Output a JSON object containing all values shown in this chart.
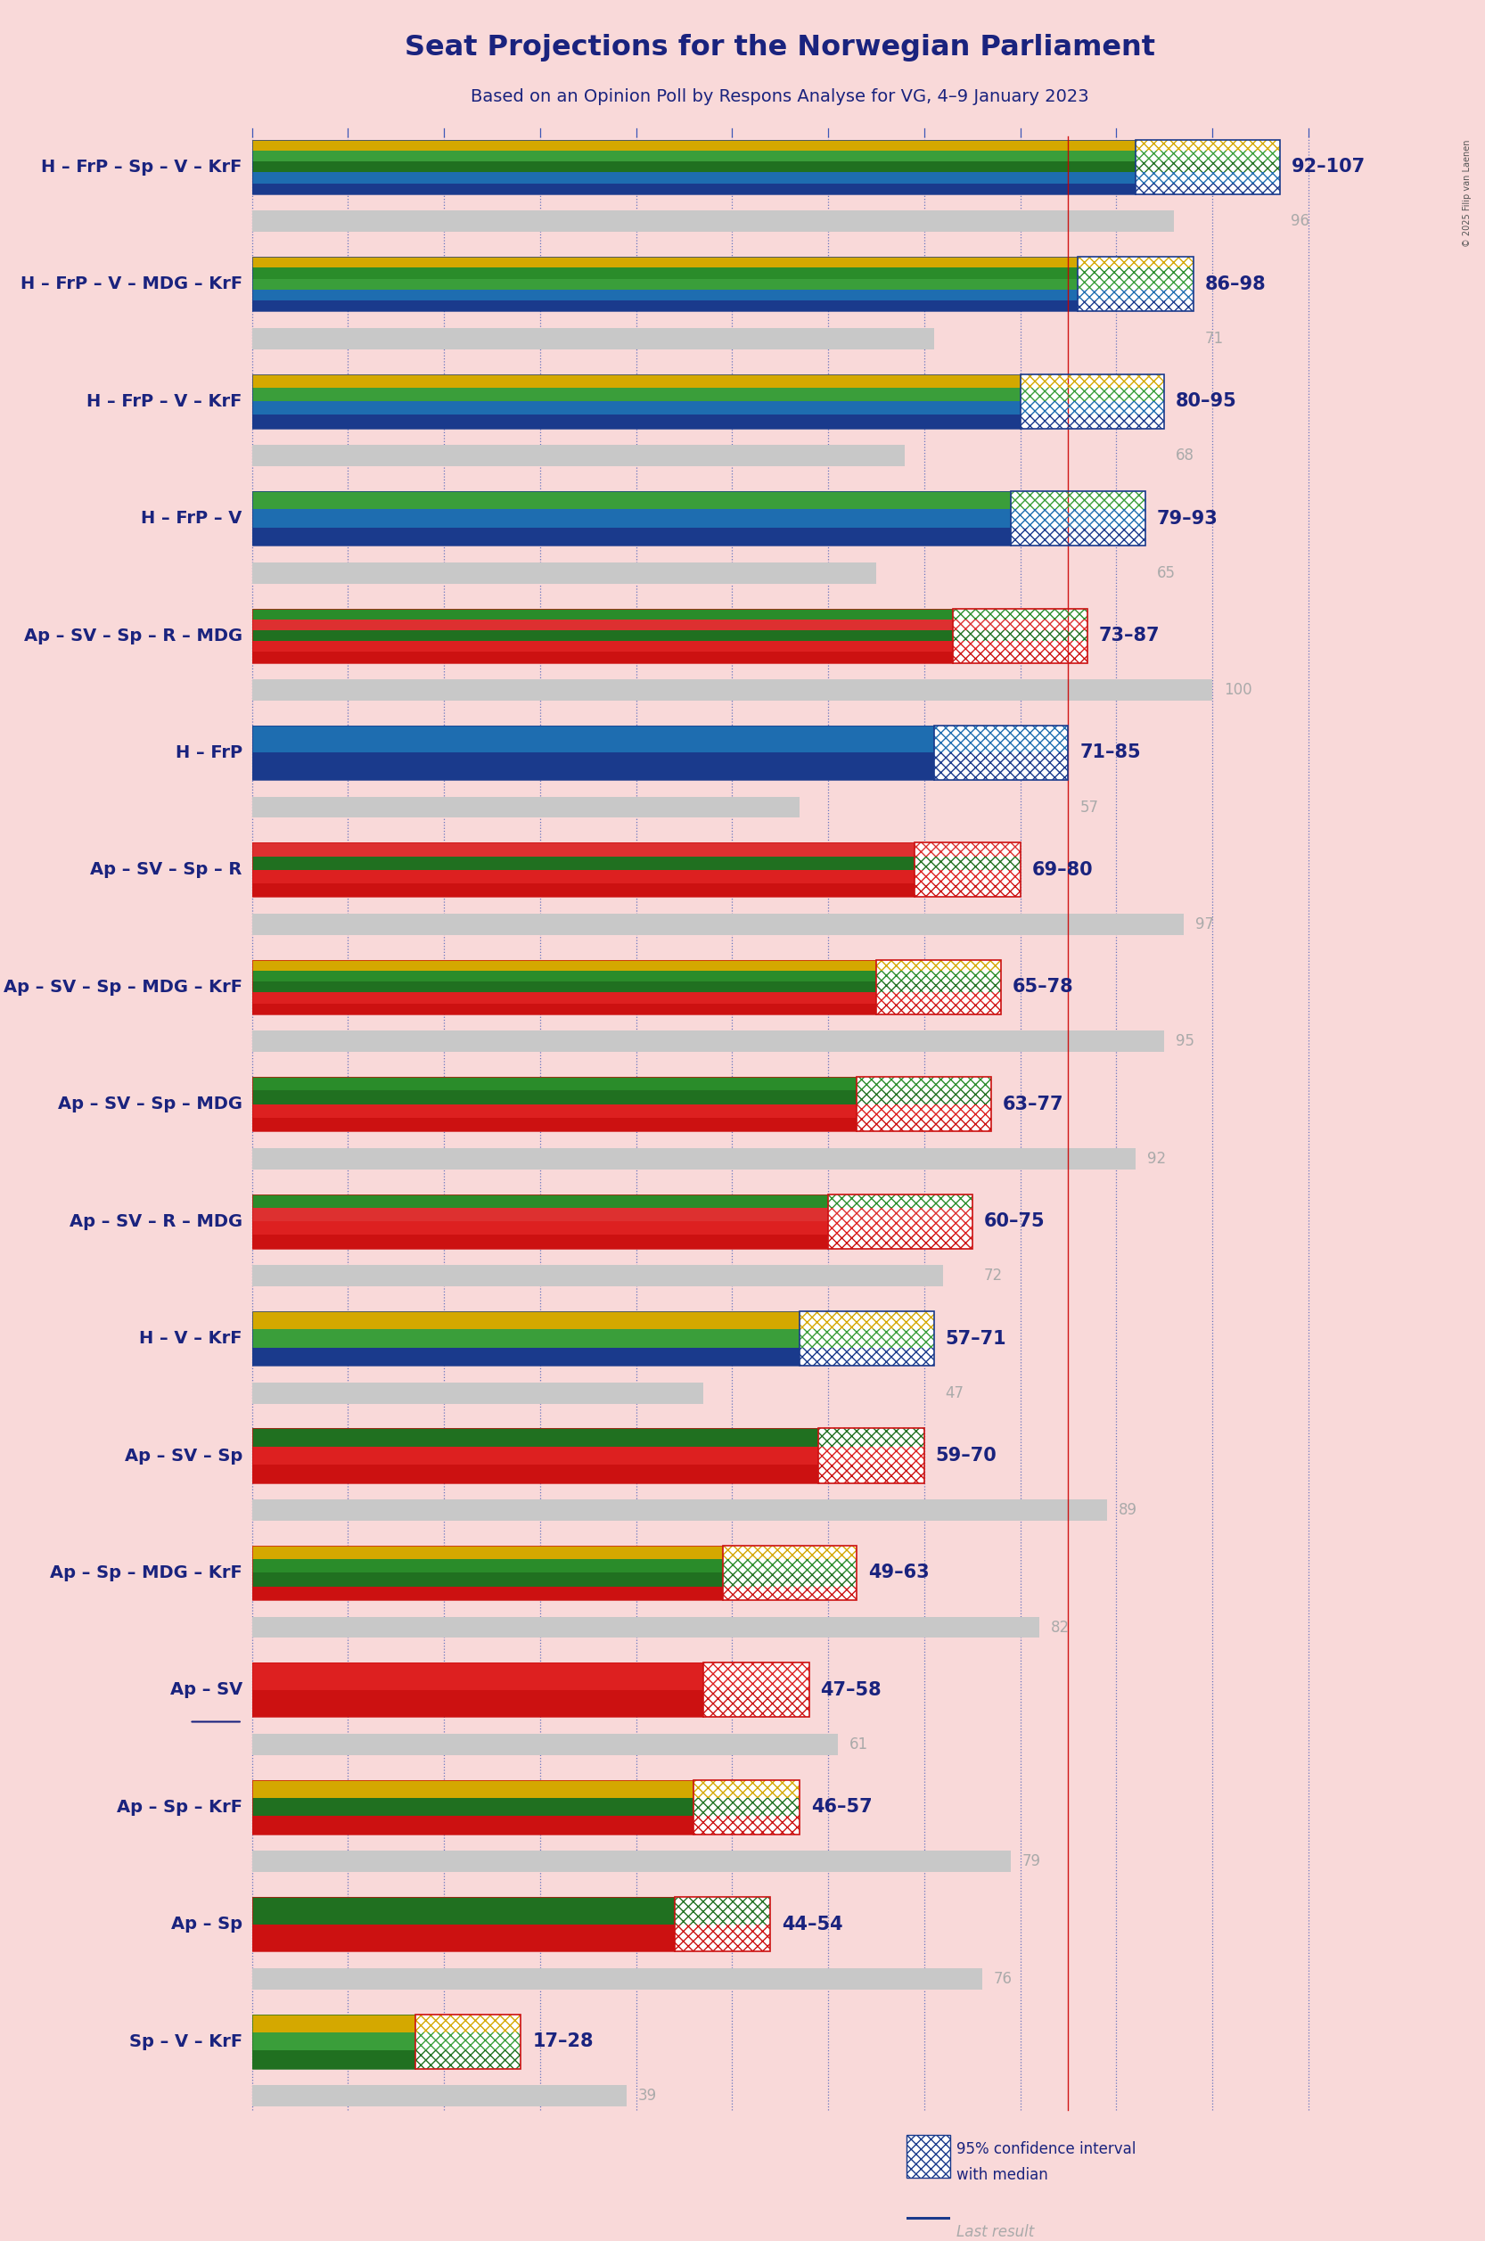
{
  "title": "Seat Projections for the Norwegian Parliament",
  "subtitle": "Based on an Opinion Poll by Respons Analyse for VG, 4–9 January 2023",
  "background_color": "#f9d9d9",
  "title_color": "#1a237e",
  "subtitle_color": "#1a237e",
  "majority_line": 85,
  "x_max": 110,
  "copyright": "© 2025 Filip van Laenen",
  "tick_interval": 10,
  "coalitions": [
    {
      "label": "H – FrP – Sp – V – KrF",
      "range_low": 92,
      "range_high": 107,
      "last": 96,
      "parties": [
        "H",
        "FrP",
        "Sp",
        "V",
        "KrF"
      ],
      "underline": false
    },
    {
      "label": "H – FrP – V – MDG – KrF",
      "range_low": 86,
      "range_high": 98,
      "last": 71,
      "parties": [
        "H",
        "FrP",
        "V",
        "MDG",
        "KrF"
      ],
      "underline": false
    },
    {
      "label": "H – FrP – V – KrF",
      "range_low": 80,
      "range_high": 95,
      "last": 68,
      "parties": [
        "H",
        "FrP",
        "V",
        "KrF"
      ],
      "underline": false
    },
    {
      "label": "H – FrP – V",
      "range_low": 79,
      "range_high": 93,
      "last": 65,
      "parties": [
        "H",
        "FrP",
        "V"
      ],
      "underline": false
    },
    {
      "label": "Ap – SV – Sp – R – MDG",
      "range_low": 73,
      "range_high": 87,
      "last": 100,
      "parties": [
        "Ap",
        "SV",
        "Sp",
        "R",
        "MDG"
      ],
      "underline": false
    },
    {
      "label": "H – FrP",
      "range_low": 71,
      "range_high": 85,
      "last": 57,
      "parties": [
        "H",
        "FrP"
      ],
      "underline": false
    },
    {
      "label": "Ap – SV – Sp – R",
      "range_low": 69,
      "range_high": 80,
      "last": 97,
      "parties": [
        "Ap",
        "SV",
        "Sp",
        "R"
      ],
      "underline": false
    },
    {
      "label": "Ap – SV – Sp – MDG – KrF",
      "range_low": 65,
      "range_high": 78,
      "last": 95,
      "parties": [
        "Ap",
        "SV",
        "Sp",
        "MDG",
        "KrF"
      ],
      "underline": false
    },
    {
      "label": "Ap – SV – Sp – MDG",
      "range_low": 63,
      "range_high": 77,
      "last": 92,
      "parties": [
        "Ap",
        "SV",
        "Sp",
        "MDG"
      ],
      "underline": false
    },
    {
      "label": "Ap – SV – R – MDG",
      "range_low": 60,
      "range_high": 75,
      "last": 72,
      "parties": [
        "Ap",
        "SV",
        "R",
        "MDG"
      ],
      "underline": false
    },
    {
      "label": "H – V – KrF",
      "range_low": 57,
      "range_high": 71,
      "last": 47,
      "parties": [
        "H",
        "V",
        "KrF"
      ],
      "underline": false
    },
    {
      "label": "Ap – SV – Sp",
      "range_low": 59,
      "range_high": 70,
      "last": 89,
      "parties": [
        "Ap",
        "SV",
        "Sp"
      ],
      "underline": false
    },
    {
      "label": "Ap – Sp – MDG – KrF",
      "range_low": 49,
      "range_high": 63,
      "last": 82,
      "parties": [
        "Ap",
        "Sp",
        "MDG",
        "KrF"
      ],
      "underline": false
    },
    {
      "label": "Ap – SV",
      "range_low": 47,
      "range_high": 58,
      "last": 61,
      "parties": [
        "Ap",
        "SV"
      ],
      "underline": true
    },
    {
      "label": "Ap – Sp – KrF",
      "range_low": 46,
      "range_high": 57,
      "last": 79,
      "parties": [
        "Ap",
        "Sp",
        "KrF"
      ],
      "underline": false
    },
    {
      "label": "Ap – Sp",
      "range_low": 44,
      "range_high": 54,
      "last": 76,
      "parties": [
        "Ap",
        "Sp"
      ],
      "underline": false
    },
    {
      "label": "Sp – V – KrF",
      "range_low": 17,
      "range_high": 28,
      "last": 39,
      "parties": [
        "Sp",
        "V",
        "KrF"
      ],
      "underline": false
    }
  ],
  "party_colors": {
    "H": "#1a3a8c",
    "FrP": "#1e6db0",
    "Sp": "#207020",
    "V": "#3a9e3a",
    "KrF": "#d4a800",
    "Ap": "#cc1111",
    "SV": "#dd2020",
    "R": "#dd3030",
    "MDG": "#2a8c2a"
  },
  "label_color": "#1a237e",
  "range_color": "#1a237e",
  "last_color": "#aaaaaa",
  "gray_bar_color": "#c8c8c8",
  "majority_color": "#cc0000",
  "grid_color": "#2a4ab5",
  "hatch_color_right": "#1a3a8c",
  "hatch_color_left": "#cc1111"
}
